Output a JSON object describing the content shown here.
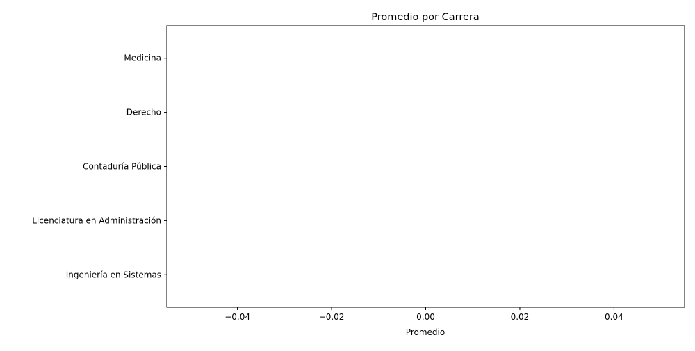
{
  "chart_data": {
    "type": "bar",
    "orientation": "horizontal",
    "title": "Promedio por Carrera",
    "xlabel": "Promedio",
    "ylabel": "",
    "categories": [
      "Ingeniería en Sistemas",
      "Licenciatura en Administración",
      "Contaduría Pública",
      "Derecho",
      "Medicina"
    ],
    "values": [
      0,
      0,
      0,
      0,
      0
    ],
    "xlim": [
      -0.055,
      0.055
    ],
    "xticks": [
      -0.04,
      -0.02,
      0.0,
      0.02,
      0.04
    ],
    "xtick_labels": [
      "−0.04",
      "−0.02",
      "0.00",
      "0.02",
      "0.04"
    ],
    "grid": false,
    "bar_color": "#1f77b4"
  }
}
